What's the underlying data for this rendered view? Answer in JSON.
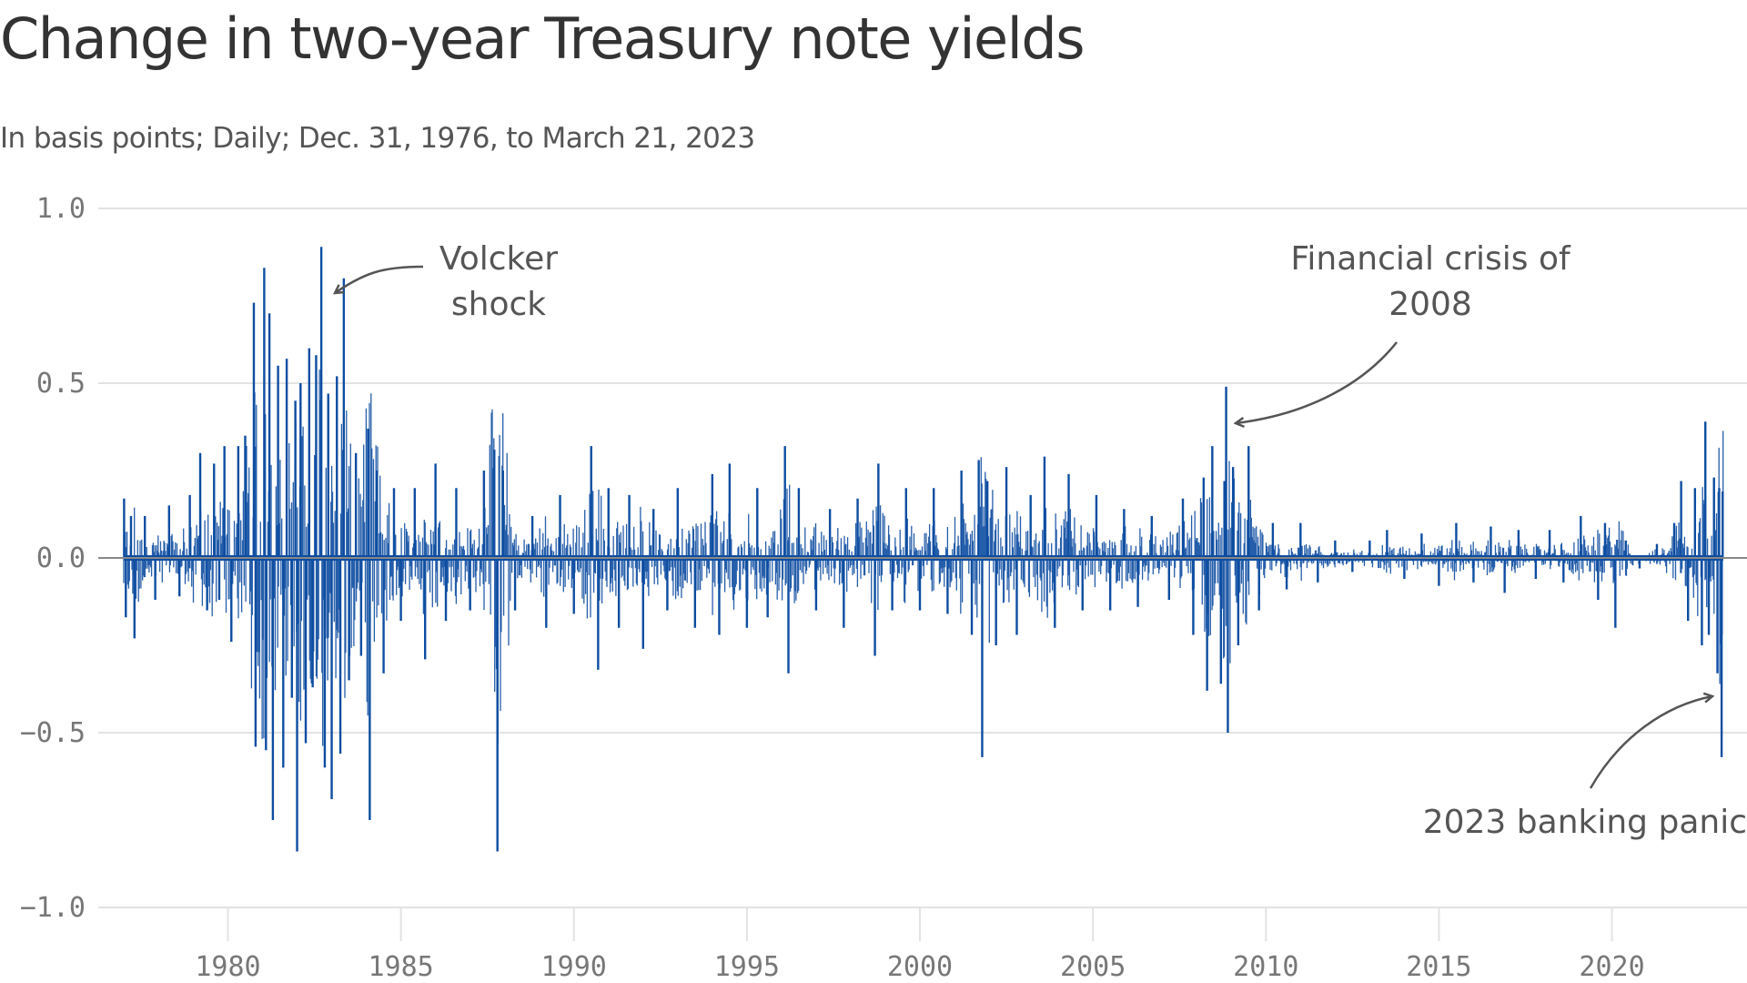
{
  "title": "Change in two-year Treasury note yields",
  "subtitle": "In basis points; Daily; Dec. 31, 1976, to March 21, 2023",
  "colors": {
    "series": "#0d4da1",
    "grid": "#e3e3e3",
    "zero_line": "#888888",
    "arrow": "#555555"
  },
  "annotations": [
    {
      "lines": [
        "Volcker",
        "shock"
      ],
      "x": 1981.6,
      "y": 0.78
    },
    {
      "lines": [
        "Financial crisis of",
        "2008"
      ],
      "x": 2008.9,
      "y": 0.4
    },
    {
      "lines": [
        "2023 banking panic"
      ],
      "x": 2023.2,
      "y": -0.4
    }
  ],
  "chart_data": {
    "type": "line",
    "title": "Change in two-year Treasury note yields",
    "subtitle": "In basis points; Daily; Dec. 31, 1976, to March 21, 2023",
    "xlabel": "",
    "ylabel": "",
    "xlim": [
      1976.99,
      2023.22
    ],
    "ylim": [
      -1.0,
      1.0
    ],
    "x_ticks": [
      1980,
      1985,
      1990,
      1995,
      2000,
      2005,
      2010,
      2015,
      2020
    ],
    "y_ticks": [
      1.0,
      0.5,
      0.0,
      -0.5,
      -1.0
    ],
    "y_tick_labels": [
      "1.0",
      "0.5",
      "0.0",
      "−0.5",
      "−1.0"
    ],
    "grid": true,
    "legend": "none",
    "series": [
      {
        "points": [
          [
            1977.0,
            0.17
          ],
          [
            1977.05,
            -0.17
          ],
          [
            1977.2,
            0.12
          ],
          [
            1977.3,
            -0.23
          ],
          [
            1977.6,
            0.12
          ],
          [
            1977.9,
            -0.12
          ],
          [
            1978.3,
            0.15
          ],
          [
            1978.6,
            -0.11
          ],
          [
            1978.9,
            0.18
          ],
          [
            1979.2,
            0.3
          ],
          [
            1979.4,
            -0.15
          ],
          [
            1979.6,
            0.27
          ],
          [
            1979.75,
            -0.12
          ],
          [
            1979.9,
            0.32
          ],
          [
            1980.1,
            -0.24
          ],
          [
            1980.3,
            0.32
          ],
          [
            1980.5,
            0.35
          ],
          [
            1980.75,
            0.73
          ],
          [
            1980.8,
            -0.54
          ],
          [
            1981.05,
            0.83
          ],
          [
            1981.1,
            -0.55
          ],
          [
            1981.2,
            0.7
          ],
          [
            1981.3,
            -0.75
          ],
          [
            1981.45,
            0.55
          ],
          [
            1981.6,
            -0.6
          ],
          [
            1981.7,
            0.57
          ],
          [
            1981.85,
            -0.4
          ],
          [
            1981.95,
            0.45
          ],
          [
            1982.0,
            -0.84
          ],
          [
            1982.1,
            0.5
          ],
          [
            1982.25,
            -0.53
          ],
          [
            1982.35,
            0.6
          ],
          [
            1982.45,
            -0.37
          ],
          [
            1982.55,
            0.58
          ],
          [
            1982.7,
            0.89
          ],
          [
            1982.8,
            -0.6
          ],
          [
            1982.9,
            0.47
          ],
          [
            1983.0,
            -0.69
          ],
          [
            1983.15,
            0.52
          ],
          [
            1983.25,
            -0.56
          ],
          [
            1983.35,
            0.8
          ],
          [
            1983.5,
            -0.35
          ],
          [
            1983.7,
            0.3
          ],
          [
            1983.85,
            -0.28
          ],
          [
            1984.05,
            0.37
          ],
          [
            1984.1,
            -0.75
          ],
          [
            1984.3,
            0.25
          ],
          [
            1984.5,
            -0.33
          ],
          [
            1984.8,
            0.2
          ],
          [
            1985.0,
            -0.18
          ],
          [
            1985.4,
            0.2
          ],
          [
            1985.7,
            -0.29
          ],
          [
            1986.0,
            0.27
          ],
          [
            1986.3,
            -0.18
          ],
          [
            1986.6,
            0.2
          ],
          [
            1987.0,
            -0.15
          ],
          [
            1987.4,
            0.25
          ],
          [
            1987.7,
            0.31
          ],
          [
            1987.79,
            -0.84
          ],
          [
            1987.95,
            0.25
          ],
          [
            1988.3,
            -0.15
          ],
          [
            1988.8,
            0.12
          ],
          [
            1989.2,
            -0.2
          ],
          [
            1989.6,
            0.18
          ],
          [
            1990.0,
            -0.16
          ],
          [
            1990.5,
            0.32
          ],
          [
            1990.7,
            -0.32
          ],
          [
            1991.0,
            0.2
          ],
          [
            1991.3,
            -0.2
          ],
          [
            1991.6,
            0.18
          ],
          [
            1992.0,
            -0.26
          ],
          [
            1992.3,
            0.14
          ],
          [
            1992.7,
            -0.15
          ],
          [
            1993.0,
            0.2
          ],
          [
            1993.5,
            -0.2
          ],
          [
            1994.0,
            0.24
          ],
          [
            1994.2,
            -0.22
          ],
          [
            1994.5,
            0.27
          ],
          [
            1995.0,
            -0.2
          ],
          [
            1995.3,
            0.2
          ],
          [
            1995.6,
            -0.17
          ],
          [
            1996.1,
            0.32
          ],
          [
            1996.2,
            -0.33
          ],
          [
            1996.5,
            0.2
          ],
          [
            1997.0,
            -0.15
          ],
          [
            1997.4,
            0.14
          ],
          [
            1997.8,
            -0.2
          ],
          [
            1998.2,
            0.17
          ],
          [
            1998.7,
            -0.28
          ],
          [
            1998.8,
            0.27
          ],
          [
            1999.2,
            -0.15
          ],
          [
            1999.6,
            0.2
          ],
          [
            2000.0,
            -0.15
          ],
          [
            2000.4,
            0.2
          ],
          [
            2000.8,
            -0.16
          ],
          [
            2001.2,
            0.25
          ],
          [
            2001.5,
            -0.22
          ],
          [
            2001.7,
            0.28
          ],
          [
            2001.8,
            -0.57
          ],
          [
            2001.95,
            0.22
          ],
          [
            2002.2,
            -0.25
          ],
          [
            2002.5,
            0.26
          ],
          [
            2002.8,
            -0.22
          ],
          [
            2003.2,
            0.18
          ],
          [
            2003.6,
            0.29
          ],
          [
            2003.9,
            -0.2
          ],
          [
            2004.3,
            0.24
          ],
          [
            2004.7,
            -0.15
          ],
          [
            2005.1,
            0.18
          ],
          [
            2005.5,
            -0.15
          ],
          [
            2005.9,
            0.14
          ],
          [
            2006.3,
            -0.14
          ],
          [
            2006.7,
            0.12
          ],
          [
            2007.2,
            -0.12
          ],
          [
            2007.6,
            0.17
          ],
          [
            2007.9,
            -0.22
          ],
          [
            2008.2,
            0.23
          ],
          [
            2008.3,
            -0.38
          ],
          [
            2008.45,
            0.32
          ],
          [
            2008.7,
            -0.36
          ],
          [
            2008.8,
            0.22
          ],
          [
            2008.85,
            0.49
          ],
          [
            2008.9,
            -0.5
          ],
          [
            2009.05,
            0.26
          ],
          [
            2009.2,
            -0.25
          ],
          [
            2009.5,
            0.32
          ],
          [
            2009.8,
            -0.15
          ],
          [
            2010.2,
            0.1
          ],
          [
            2010.6,
            -0.09
          ],
          [
            2011.0,
            0.1
          ],
          [
            2011.5,
            -0.07
          ],
          [
            2012.0,
            0.05
          ],
          [
            2012.5,
            -0.04
          ],
          [
            2013.0,
            0.05
          ],
          [
            2013.5,
            0.08
          ],
          [
            2014.0,
            -0.06
          ],
          [
            2014.5,
            0.07
          ],
          [
            2015.0,
            -0.08
          ],
          [
            2015.5,
            0.1
          ],
          [
            2016.0,
            -0.07
          ],
          [
            2016.5,
            0.09
          ],
          [
            2016.9,
            -0.1
          ],
          [
            2017.3,
            0.08
          ],
          [
            2017.8,
            -0.06
          ],
          [
            2018.2,
            0.08
          ],
          [
            2018.6,
            -0.07
          ],
          [
            2019.1,
            0.12
          ],
          [
            2019.6,
            -0.12
          ],
          [
            2019.8,
            0.1
          ],
          [
            2020.1,
            -0.2
          ],
          [
            2020.4,
            0.05
          ],
          [
            2020.8,
            -0.03
          ],
          [
            2021.3,
            0.04
          ],
          [
            2021.8,
            0.1
          ],
          [
            2022.0,
            0.22
          ],
          [
            2022.2,
            -0.18
          ],
          [
            2022.4,
            0.2
          ],
          [
            2022.6,
            -0.25
          ],
          [
            2022.7,
            0.39
          ],
          [
            2022.8,
            -0.22
          ],
          [
            2022.95,
            0.23
          ],
          [
            2023.05,
            -0.33
          ],
          [
            2023.1,
            0.2
          ],
          [
            2023.17,
            -0.57
          ],
          [
            2023.2,
            0.19
          ]
        ]
      }
    ]
  }
}
